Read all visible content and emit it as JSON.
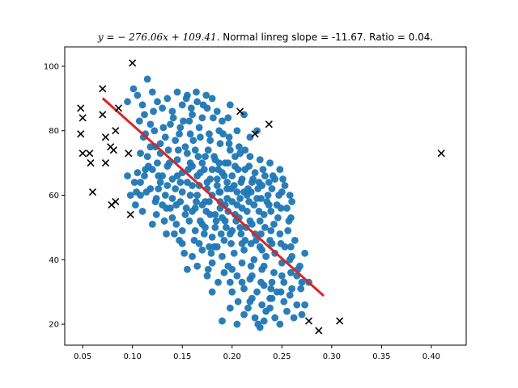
{
  "chart_data": {
    "type": "scatter",
    "title": {
      "math": "y = − 276.06x + 109.41",
      "text": ". Normal linreg slope = -11.67. Ratio = 0.04."
    },
    "xlabel": "",
    "ylabel": "",
    "xlim": [
      0.032,
      0.435
    ],
    "ylim": [
      13.5,
      106
    ],
    "xticks": [
      0.05,
      0.1,
      0.15,
      0.2,
      0.25,
      0.3,
      0.35,
      0.4
    ],
    "xtick_labels": [
      "0.05",
      "0.10",
      "0.15",
      "0.20",
      "0.25",
      "0.30",
      "0.35",
      "0.40"
    ],
    "yticks": [
      20,
      40,
      60,
      80,
      100
    ],
    "ytick_labels": [
      "20",
      "40",
      "60",
      "80",
      "100"
    ],
    "grid": false,
    "colors": {
      "points": "#1f77b4",
      "outliers": "#000000",
      "fit": "#d62728"
    },
    "fit_line": {
      "slope": -276.06,
      "intercept": 109.41,
      "x_range": [
        0.07,
        0.292
      ]
    },
    "outliers": [
      [
        0.048,
        87
      ],
      [
        0.05,
        84
      ],
      [
        0.048,
        79
      ],
      [
        0.05,
        73
      ],
      [
        0.057,
        73
      ],
      [
        0.058,
        70
      ],
      [
        0.06,
        61
      ],
      [
        0.07,
        93
      ],
      [
        0.07,
        85
      ],
      [
        0.073,
        78
      ],
      [
        0.073,
        70
      ],
      [
        0.078,
        75
      ],
      [
        0.081,
        74
      ],
      [
        0.079,
        57
      ],
      [
        0.083,
        80
      ],
      [
        0.083,
        58
      ],
      [
        0.086,
        87
      ],
      [
        0.096,
        73
      ],
      [
        0.098,
        54
      ],
      [
        0.1,
        101
      ],
      [
        0.208,
        86
      ],
      [
        0.223,
        79
      ],
      [
        0.237,
        82
      ],
      [
        0.277,
        21
      ],
      [
        0.287,
        18
      ],
      [
        0.308,
        21
      ],
      [
        0.41,
        73
      ]
    ],
    "points": [
      [
        0.101,
        93
      ],
      [
        0.105,
        91
      ],
      [
        0.11,
        88
      ],
      [
        0.115,
        96
      ],
      [
        0.12,
        92
      ],
      [
        0.112,
        85
      ],
      [
        0.118,
        82
      ],
      [
        0.125,
        89
      ],
      [
        0.13,
        87
      ],
      [
        0.135,
        90
      ],
      [
        0.14,
        86
      ],
      [
        0.145,
        92
      ],
      [
        0.15,
        88
      ],
      [
        0.155,
        91
      ],
      [
        0.16,
        85
      ],
      [
        0.165,
        89
      ],
      [
        0.17,
        84
      ],
      [
        0.175,
        87
      ],
      [
        0.18,
        90
      ],
      [
        0.185,
        86
      ],
      [
        0.19,
        83
      ],
      [
        0.198,
        88
      ],
      [
        0.205,
        80
      ],
      [
        0.212,
        85
      ],
      [
        0.218,
        78
      ],
      [
        0.225,
        80
      ],
      [
        0.095,
        89
      ],
      [
        0.107,
        83
      ],
      [
        0.113,
        79
      ],
      [
        0.122,
        80
      ],
      [
        0.128,
        76
      ],
      [
        0.133,
        78
      ],
      [
        0.138,
        82
      ],
      [
        0.143,
        77
      ],
      [
        0.148,
        81
      ],
      [
        0.153,
        75
      ],
      [
        0.158,
        79
      ],
      [
        0.163,
        74
      ],
      [
        0.168,
        78
      ],
      [
        0.173,
        72
      ],
      [
        0.178,
        77
      ],
      [
        0.183,
        71
      ],
      [
        0.188,
        76
      ],
      [
        0.193,
        70
      ],
      [
        0.198,
        74
      ],
      [
        0.203,
        69
      ],
      [
        0.208,
        73
      ],
      [
        0.213,
        68
      ],
      [
        0.218,
        72
      ],
      [
        0.223,
        67
      ],
      [
        0.228,
        71
      ],
      [
        0.233,
        66
      ],
      [
        0.238,
        70
      ],
      [
        0.243,
        65
      ],
      [
        0.248,
        68
      ],
      [
        0.253,
        63
      ],
      [
        0.258,
        60
      ],
      [
        0.115,
        72
      ],
      [
        0.12,
        68
      ],
      [
        0.125,
        70
      ],
      [
        0.13,
        66
      ],
      [
        0.135,
        69
      ],
      [
        0.14,
        65
      ],
      [
        0.145,
        71
      ],
      [
        0.15,
        67
      ],
      [
        0.155,
        73
      ],
      [
        0.16,
        69
      ],
      [
        0.165,
        66
      ],
      [
        0.17,
        70
      ],
      [
        0.175,
        64
      ],
      [
        0.18,
        68
      ],
      [
        0.185,
        63
      ],
      [
        0.19,
        67
      ],
      [
        0.195,
        62
      ],
      [
        0.2,
        66
      ],
      [
        0.205,
        61
      ],
      [
        0.21,
        65
      ],
      [
        0.215,
        60
      ],
      [
        0.22,
        64
      ],
      [
        0.225,
        59
      ],
      [
        0.23,
        63
      ],
      [
        0.235,
        58
      ],
      [
        0.24,
        62
      ],
      [
        0.245,
        57
      ],
      [
        0.25,
        61
      ],
      [
        0.255,
        56
      ],
      [
        0.26,
        58
      ],
      [
        0.102,
        64
      ],
      [
        0.108,
        60
      ],
      [
        0.112,
        66
      ],
      [
        0.118,
        62
      ],
      [
        0.123,
        58
      ],
      [
        0.128,
        64
      ],
      [
        0.133,
        60
      ],
      [
        0.138,
        56
      ],
      [
        0.143,
        62
      ],
      [
        0.148,
        58
      ],
      [
        0.153,
        54
      ],
      [
        0.158,
        60
      ],
      [
        0.163,
        56
      ],
      [
        0.168,
        52
      ],
      [
        0.173,
        58
      ],
      [
        0.178,
        54
      ],
      [
        0.183,
        50
      ],
      [
        0.188,
        56
      ],
      [
        0.193,
        52
      ],
      [
        0.198,
        48
      ],
      [
        0.203,
        54
      ],
      [
        0.208,
        50
      ],
      [
        0.213,
        46
      ],
      [
        0.218,
        52
      ],
      [
        0.223,
        48
      ],
      [
        0.228,
        44
      ],
      [
        0.233,
        50
      ],
      [
        0.238,
        46
      ],
      [
        0.243,
        42
      ],
      [
        0.248,
        48
      ],
      [
        0.253,
        44
      ],
      [
        0.258,
        40
      ],
      [
        0.263,
        46
      ],
      [
        0.268,
        38
      ],
      [
        0.273,
        42
      ],
      [
        0.11,
        55
      ],
      [
        0.12,
        51
      ],
      [
        0.13,
        57
      ],
      [
        0.14,
        53
      ],
      [
        0.15,
        49
      ],
      [
        0.16,
        55
      ],
      [
        0.17,
        51
      ],
      [
        0.18,
        47
      ],
      [
        0.19,
        53
      ],
      [
        0.2,
        49
      ],
      [
        0.21,
        45
      ],
      [
        0.22,
        51
      ],
      [
        0.23,
        43
      ],
      [
        0.24,
        45
      ],
      [
        0.25,
        39
      ],
      [
        0.26,
        41
      ],
      [
        0.15,
        45
      ],
      [
        0.16,
        41
      ],
      [
        0.17,
        43
      ],
      [
        0.18,
        39
      ],
      [
        0.19,
        41
      ],
      [
        0.2,
        37
      ],
      [
        0.21,
        39
      ],
      [
        0.22,
        35
      ],
      [
        0.23,
        37
      ],
      [
        0.24,
        33
      ],
      [
        0.25,
        35
      ],
      [
        0.26,
        31
      ],
      [
        0.265,
        35
      ],
      [
        0.27,
        33
      ],
      [
        0.192,
        36
      ],
      [
        0.198,
        33
      ],
      [
        0.205,
        35
      ],
      [
        0.212,
        31
      ],
      [
        0.218,
        34
      ],
      [
        0.225,
        30
      ],
      [
        0.232,
        32
      ],
      [
        0.238,
        28
      ],
      [
        0.245,
        30
      ],
      [
        0.252,
        27
      ],
      [
        0.258,
        29
      ],
      [
        0.265,
        26
      ],
      [
        0.19,
        21
      ],
      [
        0.198,
        25
      ],
      [
        0.205,
        20
      ],
      [
        0.212,
        23
      ],
      [
        0.218,
        27
      ],
      [
        0.223,
        22
      ],
      [
        0.228,
        19
      ],
      [
        0.232,
        21
      ],
      [
        0.238,
        25
      ],
      [
        0.243,
        22
      ],
      [
        0.248,
        20
      ],
      [
        0.255,
        24
      ],
      [
        0.262,
        22
      ],
      [
        0.27,
        23
      ],
      [
        0.18,
        30
      ],
      [
        0.175,
        35
      ],
      [
        0.185,
        44
      ],
      [
        0.195,
        59
      ],
      [
        0.205,
        57
      ],
      [
        0.215,
        55
      ],
      [
        0.185,
        65
      ],
      [
        0.195,
        64
      ],
      [
        0.175,
        62
      ],
      [
        0.165,
        60
      ],
      [
        0.155,
        64
      ],
      [
        0.145,
        66
      ],
      [
        0.135,
        63
      ],
      [
        0.172,
        68
      ],
      [
        0.182,
        72
      ],
      [
        0.192,
        66
      ],
      [
        0.202,
        63
      ],
      [
        0.212,
        61
      ],
      [
        0.222,
        57
      ],
      [
        0.232,
        54
      ],
      [
        0.242,
        51
      ],
      [
        0.2,
        58
      ],
      [
        0.21,
        56
      ],
      [
        0.18,
        60
      ],
      [
        0.17,
        57
      ],
      [
        0.16,
        63
      ],
      [
        0.15,
        61
      ],
      [
        0.14,
        59
      ],
      [
        0.188,
        61
      ],
      [
        0.196,
        55
      ],
      [
        0.204,
        52
      ],
      [
        0.214,
        50
      ],
      [
        0.224,
        46
      ],
      [
        0.234,
        41
      ],
      [
        0.178,
        65
      ],
      [
        0.168,
        67
      ],
      [
        0.158,
        70
      ],
      [
        0.148,
        64
      ],
      [
        0.188,
        58
      ],
      [
        0.208,
        59
      ],
      [
        0.228,
        52
      ],
      [
        0.095,
        66
      ],
      [
        0.105,
        67
      ],
      [
        0.098,
        60
      ],
      [
        0.103,
        57
      ],
      [
        0.108,
        64
      ],
      [
        0.113,
        68
      ],
      [
        0.126,
        62
      ],
      [
        0.136,
        74
      ],
      [
        0.146,
        74
      ],
      [
        0.156,
        68
      ],
      [
        0.166,
        72
      ],
      [
        0.176,
        74
      ],
      [
        0.186,
        68
      ],
      [
        0.196,
        70
      ],
      [
        0.206,
        68
      ],
      [
        0.216,
        62
      ],
      [
        0.226,
        62
      ],
      [
        0.236,
        60
      ],
      [
        0.246,
        53
      ],
      [
        0.256,
        49
      ],
      [
        0.266,
        37
      ],
      [
        0.132,
        52
      ],
      [
        0.142,
        48
      ],
      [
        0.152,
        42
      ],
      [
        0.162,
        46
      ],
      [
        0.172,
        48
      ],
      [
        0.182,
        44
      ],
      [
        0.192,
        46
      ],
      [
        0.202,
        42
      ],
      [
        0.212,
        43
      ],
      [
        0.222,
        40
      ],
      [
        0.232,
        38
      ],
      [
        0.242,
        36
      ],
      [
        0.252,
        33
      ],
      [
        0.2,
        30
      ],
      [
        0.21,
        33
      ],
      [
        0.22,
        28
      ],
      [
        0.23,
        26
      ],
      [
        0.24,
        28
      ],
      [
        0.155,
        37
      ],
      [
        0.165,
        38
      ],
      [
        0.176,
        37
      ],
      [
        0.186,
        33
      ],
      [
        0.196,
        38
      ],
      [
        0.206,
        27
      ],
      [
        0.216,
        25
      ],
      [
        0.226,
        20
      ],
      [
        0.234,
        24
      ],
      [
        0.184,
        52
      ],
      [
        0.194,
        50
      ],
      [
        0.174,
        55
      ],
      [
        0.164,
        58
      ],
      [
        0.154,
        56
      ],
      [
        0.144,
        57
      ],
      [
        0.134,
        56
      ],
      [
        0.124,
        59
      ],
      [
        0.114,
        61
      ],
      [
        0.104,
        61
      ],
      [
        0.187,
        70
      ],
      [
        0.197,
        78
      ],
      [
        0.207,
        75
      ],
      [
        0.217,
        69
      ],
      [
        0.227,
        64
      ],
      [
        0.237,
        64
      ],
      [
        0.247,
        60
      ],
      [
        0.257,
        52
      ],
      [
        0.137,
        70
      ],
      [
        0.147,
        79
      ],
      [
        0.157,
        83
      ],
      [
        0.167,
        81
      ],
      [
        0.177,
        79
      ],
      [
        0.187,
        80
      ],
      [
        0.197,
        76
      ],
      [
        0.128,
        73
      ],
      [
        0.118,
        75
      ],
      [
        0.108,
        73
      ],
      [
        0.116,
        69
      ],
      [
        0.126,
        66
      ],
      [
        0.124,
        54
      ],
      [
        0.134,
        48
      ],
      [
        0.144,
        51
      ],
      [
        0.179,
        42
      ],
      [
        0.189,
        48
      ],
      [
        0.199,
        45
      ],
      [
        0.209,
        48
      ],
      [
        0.219,
        45
      ],
      [
        0.229,
        48
      ],
      [
        0.239,
        49
      ],
      [
        0.249,
        45
      ],
      [
        0.259,
        44
      ],
      [
        0.269,
        31
      ],
      [
        0.277,
        33
      ],
      [
        0.273,
        26
      ],
      [
        0.219,
        38
      ],
      [
        0.229,
        33
      ],
      [
        0.239,
        31
      ],
      [
        0.249,
        30
      ],
      [
        0.259,
        36
      ],
      [
        0.203,
        72
      ],
      [
        0.213,
        74
      ],
      [
        0.171,
        88
      ],
      [
        0.181,
        84
      ],
      [
        0.191,
        79
      ],
      [
        0.161,
        77
      ],
      [
        0.151,
        83
      ],
      [
        0.141,
        84
      ],
      [
        0.131,
        81
      ],
      [
        0.121,
        86
      ],
      [
        0.111,
        78
      ],
      [
        0.167,
        63
      ],
      [
        0.177,
        58
      ],
      [
        0.187,
        61
      ],
      [
        0.207,
        53
      ],
      [
        0.217,
        58
      ],
      [
        0.227,
        55
      ],
      [
        0.237,
        57
      ],
      [
        0.157,
        52
      ],
      [
        0.147,
        46
      ],
      [
        0.167,
        45
      ],
      [
        0.177,
        44
      ],
      [
        0.221,
        65
      ],
      [
        0.231,
        68
      ],
      [
        0.241,
        66
      ],
      [
        0.251,
        65
      ],
      [
        0.196,
        84
      ],
      [
        0.174,
        91
      ],
      [
        0.164,
        92
      ],
      [
        0.154,
        90
      ],
      [
        0.159,
        87
      ],
      [
        0.123,
        75
      ],
      [
        0.193,
        57
      ],
      [
        0.183,
        54
      ],
      [
        0.173,
        50
      ],
      [
        0.163,
        49
      ],
      [
        0.199,
        62
      ],
      [
        0.209,
        64
      ],
      [
        0.219,
        61
      ],
      [
        0.229,
        59
      ],
      [
        0.239,
        55
      ],
      [
        0.249,
        56
      ],
      [
        0.259,
        53
      ]
    ]
  }
}
